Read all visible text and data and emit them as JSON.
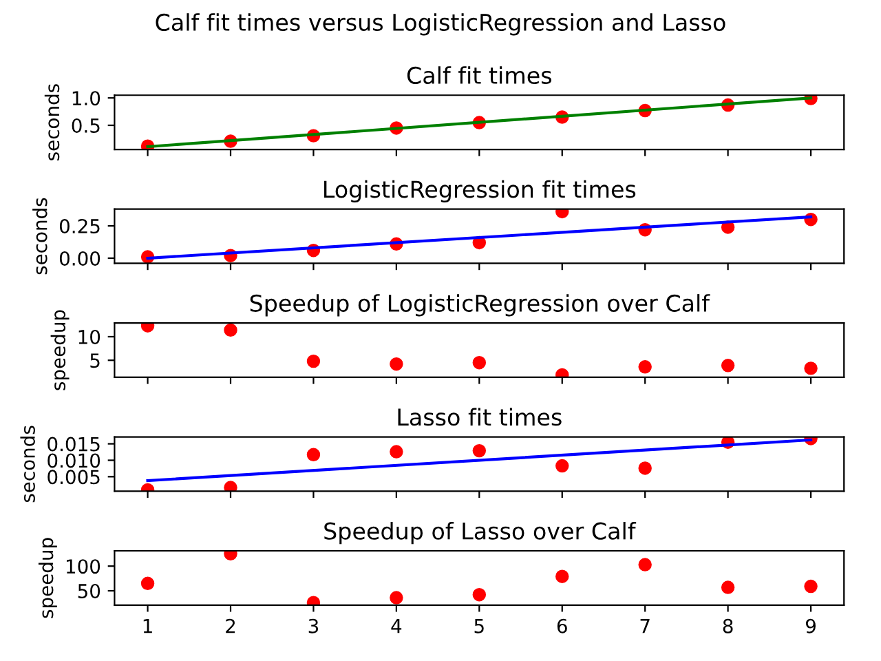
{
  "chart_data": [
    {
      "type": "scatter",
      "title": "Calf fit times versus LogisticRegression and Lasso",
      "subtitle": "Calf fit times",
      "ylabel": "seconds",
      "marker": "circle",
      "xlim": [
        0.6,
        9.4
      ],
      "xticks": [
        1,
        2,
        3,
        4,
        5,
        6,
        7,
        8,
        9
      ],
      "ylim": [
        0.06,
        1.05
      ],
      "yticks": [
        0.5,
        {
          "value": 1.0,
          "label": "1.0"
        }
      ],
      "tick_labels": "y",
      "series": [
        {
          "color": "#ff0000",
          "x": [
            1,
            2,
            3,
            4,
            5,
            6,
            7,
            8,
            9
          ],
          "values": [
            0.12,
            0.21,
            0.31,
            0.45,
            0.55,
            0.65,
            0.77,
            0.87,
            0.99
          ]
        },
        {
          "type": "line",
          "color": "#008000",
          "marker": "none",
          "line_style": "solid",
          "x": [
            1,
            9
          ],
          "values": [
            0.11,
            1.0
          ]
        }
      ]
    },
    {
      "type": "scatter",
      "title": "LogisticRegression fit times",
      "ylabel": "seconds",
      "marker": "circle",
      "xlim": [
        0.6,
        9.4
      ],
      "xticks": [
        1,
        2,
        3,
        4,
        5,
        6,
        7,
        8,
        9
      ],
      "ylim": [
        -0.04,
        0.38
      ],
      "yticks": [
        {
          "value": 0,
          "label": "0.00"
        },
        0.25
      ],
      "tick_labels": "y",
      "series": [
        {
          "color": "#ff0000",
          "x": [
            1,
            2,
            3,
            4,
            5,
            6,
            7,
            8,
            9
          ],
          "values": [
            0.01,
            0.02,
            0.06,
            0.11,
            0.12,
            0.36,
            0.22,
            0.24,
            0.3
          ]
        },
        {
          "type": "line",
          "color": "#0000ff",
          "marker": "none",
          "line_style": "solid",
          "x": [
            1,
            9
          ],
          "values": [
            0.0,
            0.32
          ]
        }
      ]
    },
    {
      "type": "scatter",
      "title": "Speedup of LogisticRegression over Calf",
      "ylabel": "speedup",
      "marker": "circle",
      "xlim": [
        0.6,
        9.4
      ],
      "xticks": [
        1,
        2,
        3,
        4,
        5,
        6,
        7,
        8,
        9
      ],
      "ylim": [
        1.4,
        12.9
      ],
      "yticks": [
        5,
        10
      ],
      "tick_labels": "y",
      "series": [
        {
          "color": "#ff0000",
          "x": [
            1,
            2,
            3,
            4,
            5,
            6,
            7,
            8,
            9
          ],
          "values": [
            12.3,
            11.4,
            4.8,
            4.2,
            4.5,
            1.9,
            3.6,
            3.9,
            3.3
          ]
        }
      ]
    },
    {
      "type": "scatter",
      "title": "Lasso fit times",
      "ylabel": "seconds",
      "marker": "circle",
      "xlim": [
        0.6,
        9.4
      ],
      "xticks": [
        1,
        2,
        3,
        4,
        5,
        6,
        7,
        8,
        9
      ],
      "ylim": [
        0.0006,
        0.0171
      ],
      "yticks": [
        0.005,
        {
          "value": 0.01,
          "label": "0.010"
        },
        0.015
      ],
      "tick_labels": "y",
      "series": [
        {
          "color": "#ff0000",
          "x": [
            1,
            2,
            3,
            4,
            5,
            6,
            7,
            8,
            9
          ],
          "values": [
            0.001,
            0.0017,
            0.0117,
            0.0126,
            0.0129,
            0.0083,
            0.0076,
            0.0155,
            0.0166
          ]
        },
        {
          "type": "line",
          "color": "#0000ff",
          "marker": "none",
          "line_style": "solid",
          "x": [
            1,
            9
          ],
          "values": [
            0.0038,
            0.0162
          ]
        }
      ]
    },
    {
      "type": "scatter",
      "title": "Speedup of Lasso over Calf",
      "ylabel": "speedup",
      "marker": "circle",
      "xlim": [
        0.6,
        9.4
      ],
      "xticks": [
        1,
        2,
        3,
        4,
        5,
        6,
        7,
        8,
        9
      ],
      "ylim": [
        21,
        131
      ],
      "yticks": [
        50,
        100
      ],
      "series": [
        {
          "color": "#ff0000",
          "x": [
            1,
            2,
            3,
            4,
            5,
            6,
            7,
            8,
            9
          ],
          "values": [
            65,
            125,
            26,
            36,
            42,
            79,
            103,
            57,
            59
          ]
        }
      ]
    }
  ]
}
